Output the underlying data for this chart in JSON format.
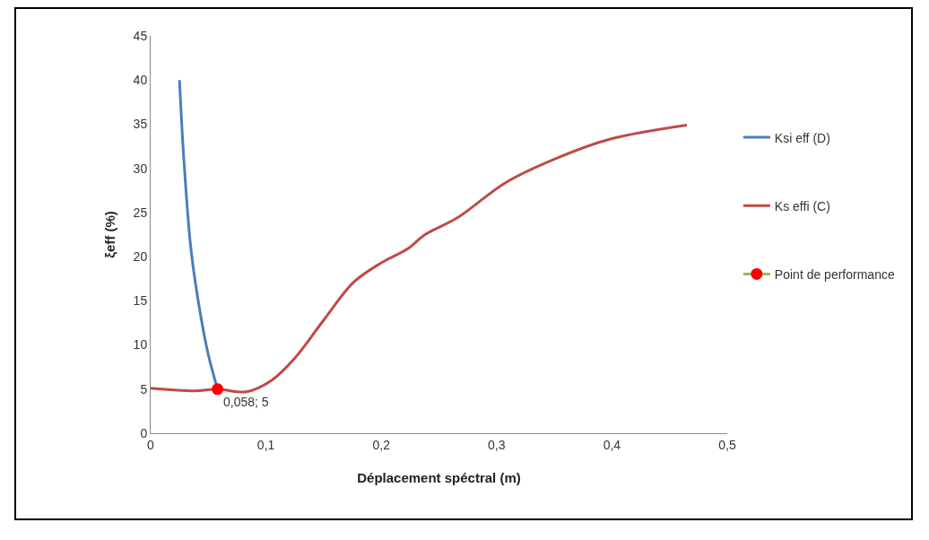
{
  "chart_data": {
    "type": "line",
    "xlabel": "Déplacement spéctral (m)",
    "ylabel": "ξeff (%)",
    "xlim": [
      0,
      0.5
    ],
    "xticks": [
      0,
      {
        "value": 0.1,
        "label": "0,1"
      },
      {
        "value": 0.2,
        "label": "0,2"
      },
      {
        "value": 0.3,
        "label": "0,3"
      },
      {
        "value": 0.4,
        "label": "0,4"
      },
      {
        "value": 0.5,
        "label": "0,5"
      }
    ],
    "ylim": [
      0,
      45
    ],
    "yticks": [
      0,
      5,
      10,
      15,
      20,
      25,
      30,
      35,
      40,
      45
    ],
    "grid": false,
    "legend": "right",
    "line_style": "solid",
    "series": [
      {
        "name": "Ksi eff (D)",
        "color": "#4a7ebb",
        "marker": "none",
        "x": [
          0.025,
          0.029,
          0.035,
          0.043,
          0.05,
          0.058
        ],
        "values": [
          40,
          30.6,
          20.8,
          13.6,
          8.9,
          5
        ]
      },
      {
        "name": "Ks effi (C)",
        "color": "#be4b48",
        "marker": "none",
        "x": [
          0,
          0.038,
          0.058,
          0.083,
          0.105,
          0.125,
          0.15,
          0.176,
          0.2,
          0.223,
          0.238,
          0.266,
          0.308,
          0.353,
          0.398,
          0.465
        ],
        "values": [
          5.1,
          4.8,
          5,
          4.7,
          6,
          8.5,
          12.8,
          17.1,
          19.3,
          20.9,
          22.5,
          24.4,
          28.4,
          31.2,
          33.3,
          34.9
        ]
      },
      {
        "name": "Point de performance",
        "type": "scatter",
        "color": "#9bbb59",
        "colors": [
          "#ff0000"
        ],
        "marker": "circle",
        "x": [
          0.058
        ],
        "values": [
          5
        ]
      }
    ],
    "annotations": [
      {
        "text": "0,058; 5",
        "x": 0.058,
        "y": 5
      }
    ]
  }
}
